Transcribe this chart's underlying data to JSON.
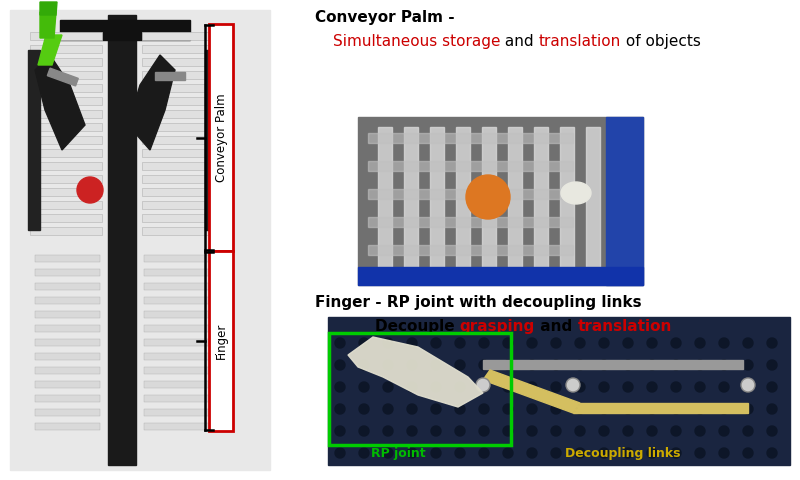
{
  "bg_color": "#ffffff",
  "conveyor_palm_title_black": "Conveyor Palm - ",
  "conveyor_palm_line2_parts": [
    {
      "text": "Simultaneous storage",
      "color": "#cc0000"
    },
    {
      "text": " and ",
      "color": "#000000"
    },
    {
      "text": "translation",
      "color": "#cc0000"
    },
    {
      "text": " of objects",
      "color": "#000000"
    }
  ],
  "finger_title_black": "Finger - RP joint with decoupling links",
  "finger_line2_parts": [
    {
      "text": "        Decouple ",
      "color": "#000000"
    },
    {
      "text": "grasping",
      "color": "#cc0000"
    },
    {
      "text": " and ",
      "color": "#000000"
    },
    {
      "text": "translation",
      "color": "#cc0000"
    }
  ],
  "conveyor_palm_label": "Conveyor Palm",
  "finger_label": "Finger",
  "rp_joint_label": "RP joint",
  "rp_joint_color": "#00bb00",
  "decoupling_label": "Decoupling links",
  "decoupling_color": "#ccaa00"
}
